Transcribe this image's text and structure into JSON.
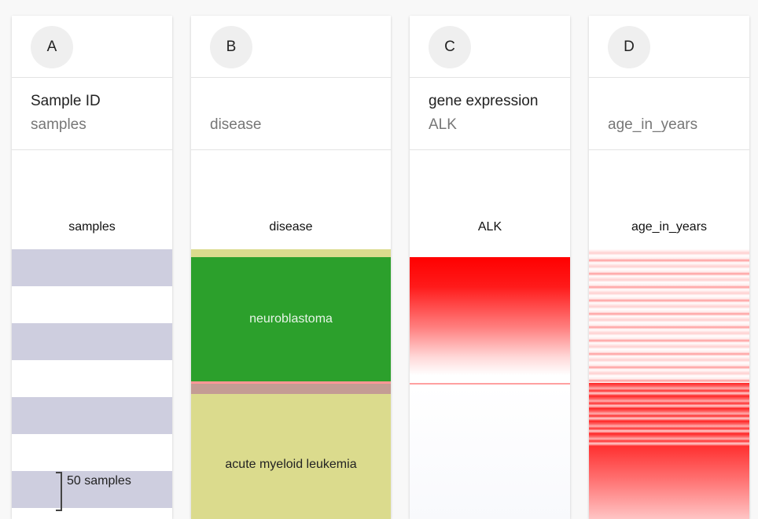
{
  "columns": [
    {
      "letter": "A",
      "title": "Sample ID",
      "subtitle": "samples",
      "track_label": "samples",
      "scale_label": "50 samples"
    },
    {
      "letter": "B",
      "title": "",
      "subtitle": "disease",
      "track_label": "disease",
      "categories": [
        {
          "name": "neuroblastoma",
          "color": "#2ca02c"
        },
        {
          "name": "acute myeloid leukemia",
          "color": "#dbdb8d"
        }
      ]
    },
    {
      "letter": "C",
      "title": "gene expression",
      "subtitle": "ALK",
      "track_label": "ALK"
    },
    {
      "letter": "D",
      "title": "",
      "subtitle": "age_in_years",
      "track_label": "age_in_years"
    }
  ],
  "colors": {
    "sample_band": "#cecedf",
    "neuroblastoma": "#2ca02c",
    "aml": "#dbdb8d",
    "divider": "#c49c94",
    "heat": "#ff0000"
  }
}
